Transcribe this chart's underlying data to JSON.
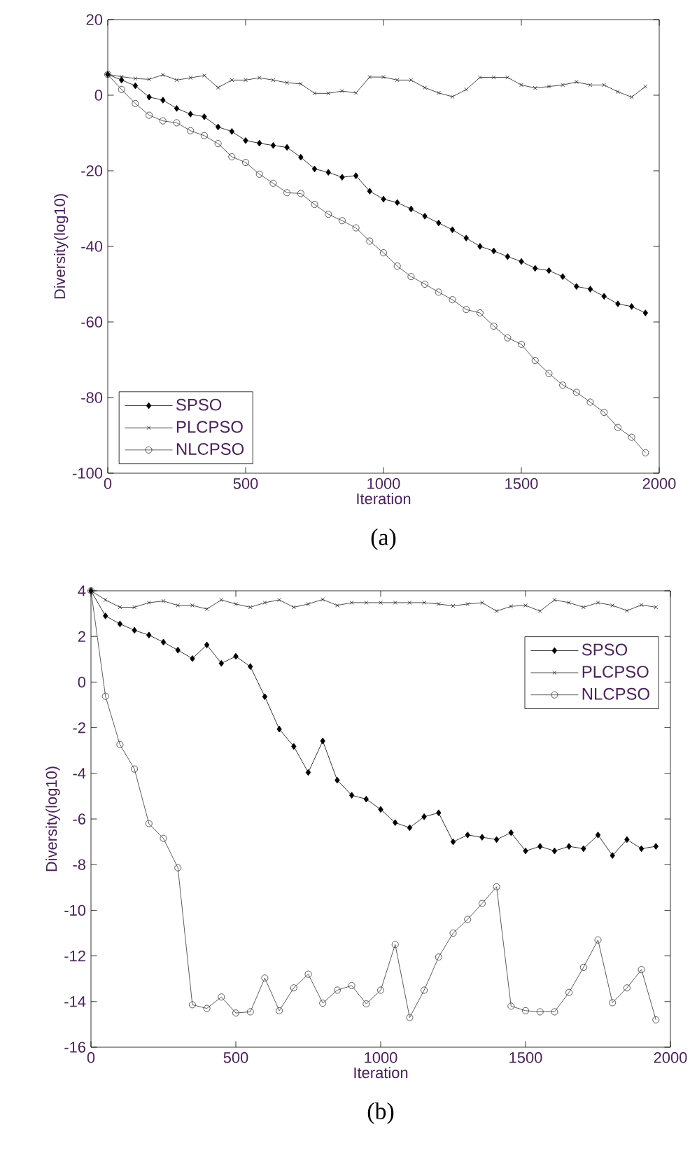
{
  "chart_data": [
    {
      "type": "line",
      "xlabel": "Iteration",
      "ylabel": "Diversity(log10)",
      "annotations": [
        "(a)"
      ],
      "legend": "bottom left",
      "grid": false,
      "line_style": "solid",
      "x": [
        0,
        50,
        100,
        150,
        200,
        250,
        300,
        350,
        400,
        450,
        500,
        550,
        600,
        650,
        700,
        750,
        800,
        850,
        900,
        950,
        1000,
        1050,
        1100,
        1150,
        1200,
        1250,
        1300,
        1350,
        1400,
        1450,
        1500,
        1550,
        1600,
        1650,
        1700,
        1750,
        1800,
        1850,
        1900,
        1950
      ],
      "xlim": [
        0,
        2000
      ],
      "xticks": [
        0,
        500,
        1000,
        1500,
        2000
      ],
      "ylim": [
        -100,
        20
      ],
      "yticks": [
        -100,
        -80,
        -60,
        -40,
        -20,
        0,
        20
      ],
      "series": [
        {
          "name": "SPSO",
          "color": "#000000",
          "marker": "diamond",
          "values": [
            5.5,
            4,
            2.5,
            -0.5,
            -1.3,
            -3.5,
            -5,
            -5.7,
            -8.4,
            -9.6,
            -12,
            -12.7,
            -13.3,
            -13.8,
            -16.4,
            -19.5,
            -20.4,
            -21.7,
            -21.3,
            -25.4,
            -27.5,
            -28.4,
            -30.1,
            -32,
            -33.8,
            -35.6,
            -37.8,
            -40,
            -41.2,
            -42.7,
            -44,
            -45.8,
            -46.4,
            -48,
            -50.6,
            -51.3,
            -53.2,
            -55.2,
            -55.9,
            -57.6
          ]
        },
        {
          "name": "PLCPSO",
          "color": "#1a1a1a",
          "marker": "cross",
          "values": [
            5.5,
            4.9,
            4.4,
            4.2,
            5.4,
            4,
            4.6,
            5.2,
            2,
            4,
            4,
            4.6,
            4,
            3.3,
            3,
            0.5,
            0.5,
            1.1,
            0.6,
            4.8,
            4.8,
            4,
            4,
            2,
            0.6,
            -0.4,
            1.5,
            4.7,
            4.7,
            4.7,
            2.7,
            1.9,
            2.3,
            2.7,
            3.5,
            2.7,
            2.7,
            0.9,
            -0.5,
            2.3
          ]
        },
        {
          "name": "NLCPSO",
          "color": "#333333",
          "marker": "circle",
          "values": [
            5.5,
            1.5,
            -2.2,
            -5.3,
            -6.8,
            -7.3,
            -9.4,
            -10.7,
            -12.8,
            -16.3,
            -17.8,
            -20.9,
            -23.3,
            -25.8,
            -26,
            -28.9,
            -31.5,
            -33.2,
            -35.1,
            -38.6,
            -41.7,
            -45.2,
            -48,
            -50,
            -52.1,
            -54.1,
            -56.7,
            -57.6,
            -61.1,
            -64.2,
            -65.9,
            -70.2,
            -73.6,
            -76.7,
            -78.6,
            -81.2,
            -83.9,
            -87.9,
            -90.5,
            -94.6
          ]
        }
      ]
    },
    {
      "type": "line",
      "xlabel": "Iteration",
      "ylabel": "Diversity(log10)",
      "annotations": [
        "(b)"
      ],
      "legend": "top right",
      "grid": false,
      "line_style": "solid",
      "x": [
        0,
        50,
        100,
        150,
        200,
        250,
        300,
        350,
        400,
        450,
        500,
        550,
        600,
        650,
        700,
        750,
        800,
        850,
        900,
        950,
        1000,
        1050,
        1100,
        1150,
        1200,
        1250,
        1300,
        1350,
        1400,
        1450,
        1500,
        1550,
        1600,
        1650,
        1700,
        1750,
        1800,
        1850,
        1900,
        1950
      ],
      "xlim": [
        0,
        2000
      ],
      "xticks": [
        0,
        500,
        1000,
        1500,
        2000
      ],
      "ylim": [
        -16,
        4
      ],
      "yticks": [
        -16,
        -14,
        -12,
        -10,
        -8,
        -6,
        -4,
        -2,
        0,
        2,
        4
      ],
      "series": [
        {
          "name": "SPSO",
          "color": "#000000",
          "marker": "diamond",
          "values": [
            4,
            2.9,
            2.55,
            2.27,
            2.06,
            1.75,
            1.4,
            1.03,
            1.63,
            0.82,
            1.13,
            0.68,
            -0.64,
            -2.06,
            -2.82,
            -3.96,
            -2.58,
            -4.3,
            -4.96,
            -5.13,
            -5.58,
            -6.16,
            -6.38,
            -5.9,
            -5.73,
            -7,
            -6.7,
            -6.8,
            -6.9,
            -6.6,
            -7.4,
            -7.2,
            -7.4,
            -7.2,
            -7.3,
            -6.7,
            -7.6,
            -6.9,
            -7.3,
            -7.2
          ]
        },
        {
          "name": "PLCPSO",
          "color": "#1a1a1a",
          "marker": "cross",
          "values": [
            4,
            3.6,
            3.28,
            3.28,
            3.48,
            3.55,
            3.36,
            3.36,
            3.2,
            3.6,
            3.42,
            3.28,
            3.48,
            3.6,
            3.28,
            3.42,
            3.62,
            3.36,
            3.48,
            3.48,
            3.48,
            3.48,
            3.48,
            3.48,
            3.42,
            3.34,
            3.42,
            3.48,
            3.11,
            3.32,
            3.36,
            3.11,
            3.6,
            3.48,
            3.28,
            3.48,
            3.36,
            3.13,
            3.38,
            3.28
          ]
        },
        {
          "name": "NLCPSO",
          "color": "#333333",
          "marker": "circle",
          "values": [
            4,
            -0.62,
            -2.74,
            -3.81,
            -6.2,
            -6.85,
            -8.14,
            -14.14,
            -14.3,
            -13.8,
            -14.5,
            -14.45,
            -12.97,
            -14.4,
            -13.4,
            -12.8,
            -14.07,
            -13.5,
            -13.3,
            -14.1,
            -13.5,
            -11.5,
            -14.7,
            -13.5,
            -12.05,
            -11,
            -10.4,
            -9.7,
            -8.97,
            -14.2,
            -14.4,
            -14.45,
            -14.45,
            -13.6,
            -12.5,
            -11.3,
            -14.05,
            -13.4,
            -12.6,
            -14.8
          ]
        }
      ]
    }
  ]
}
